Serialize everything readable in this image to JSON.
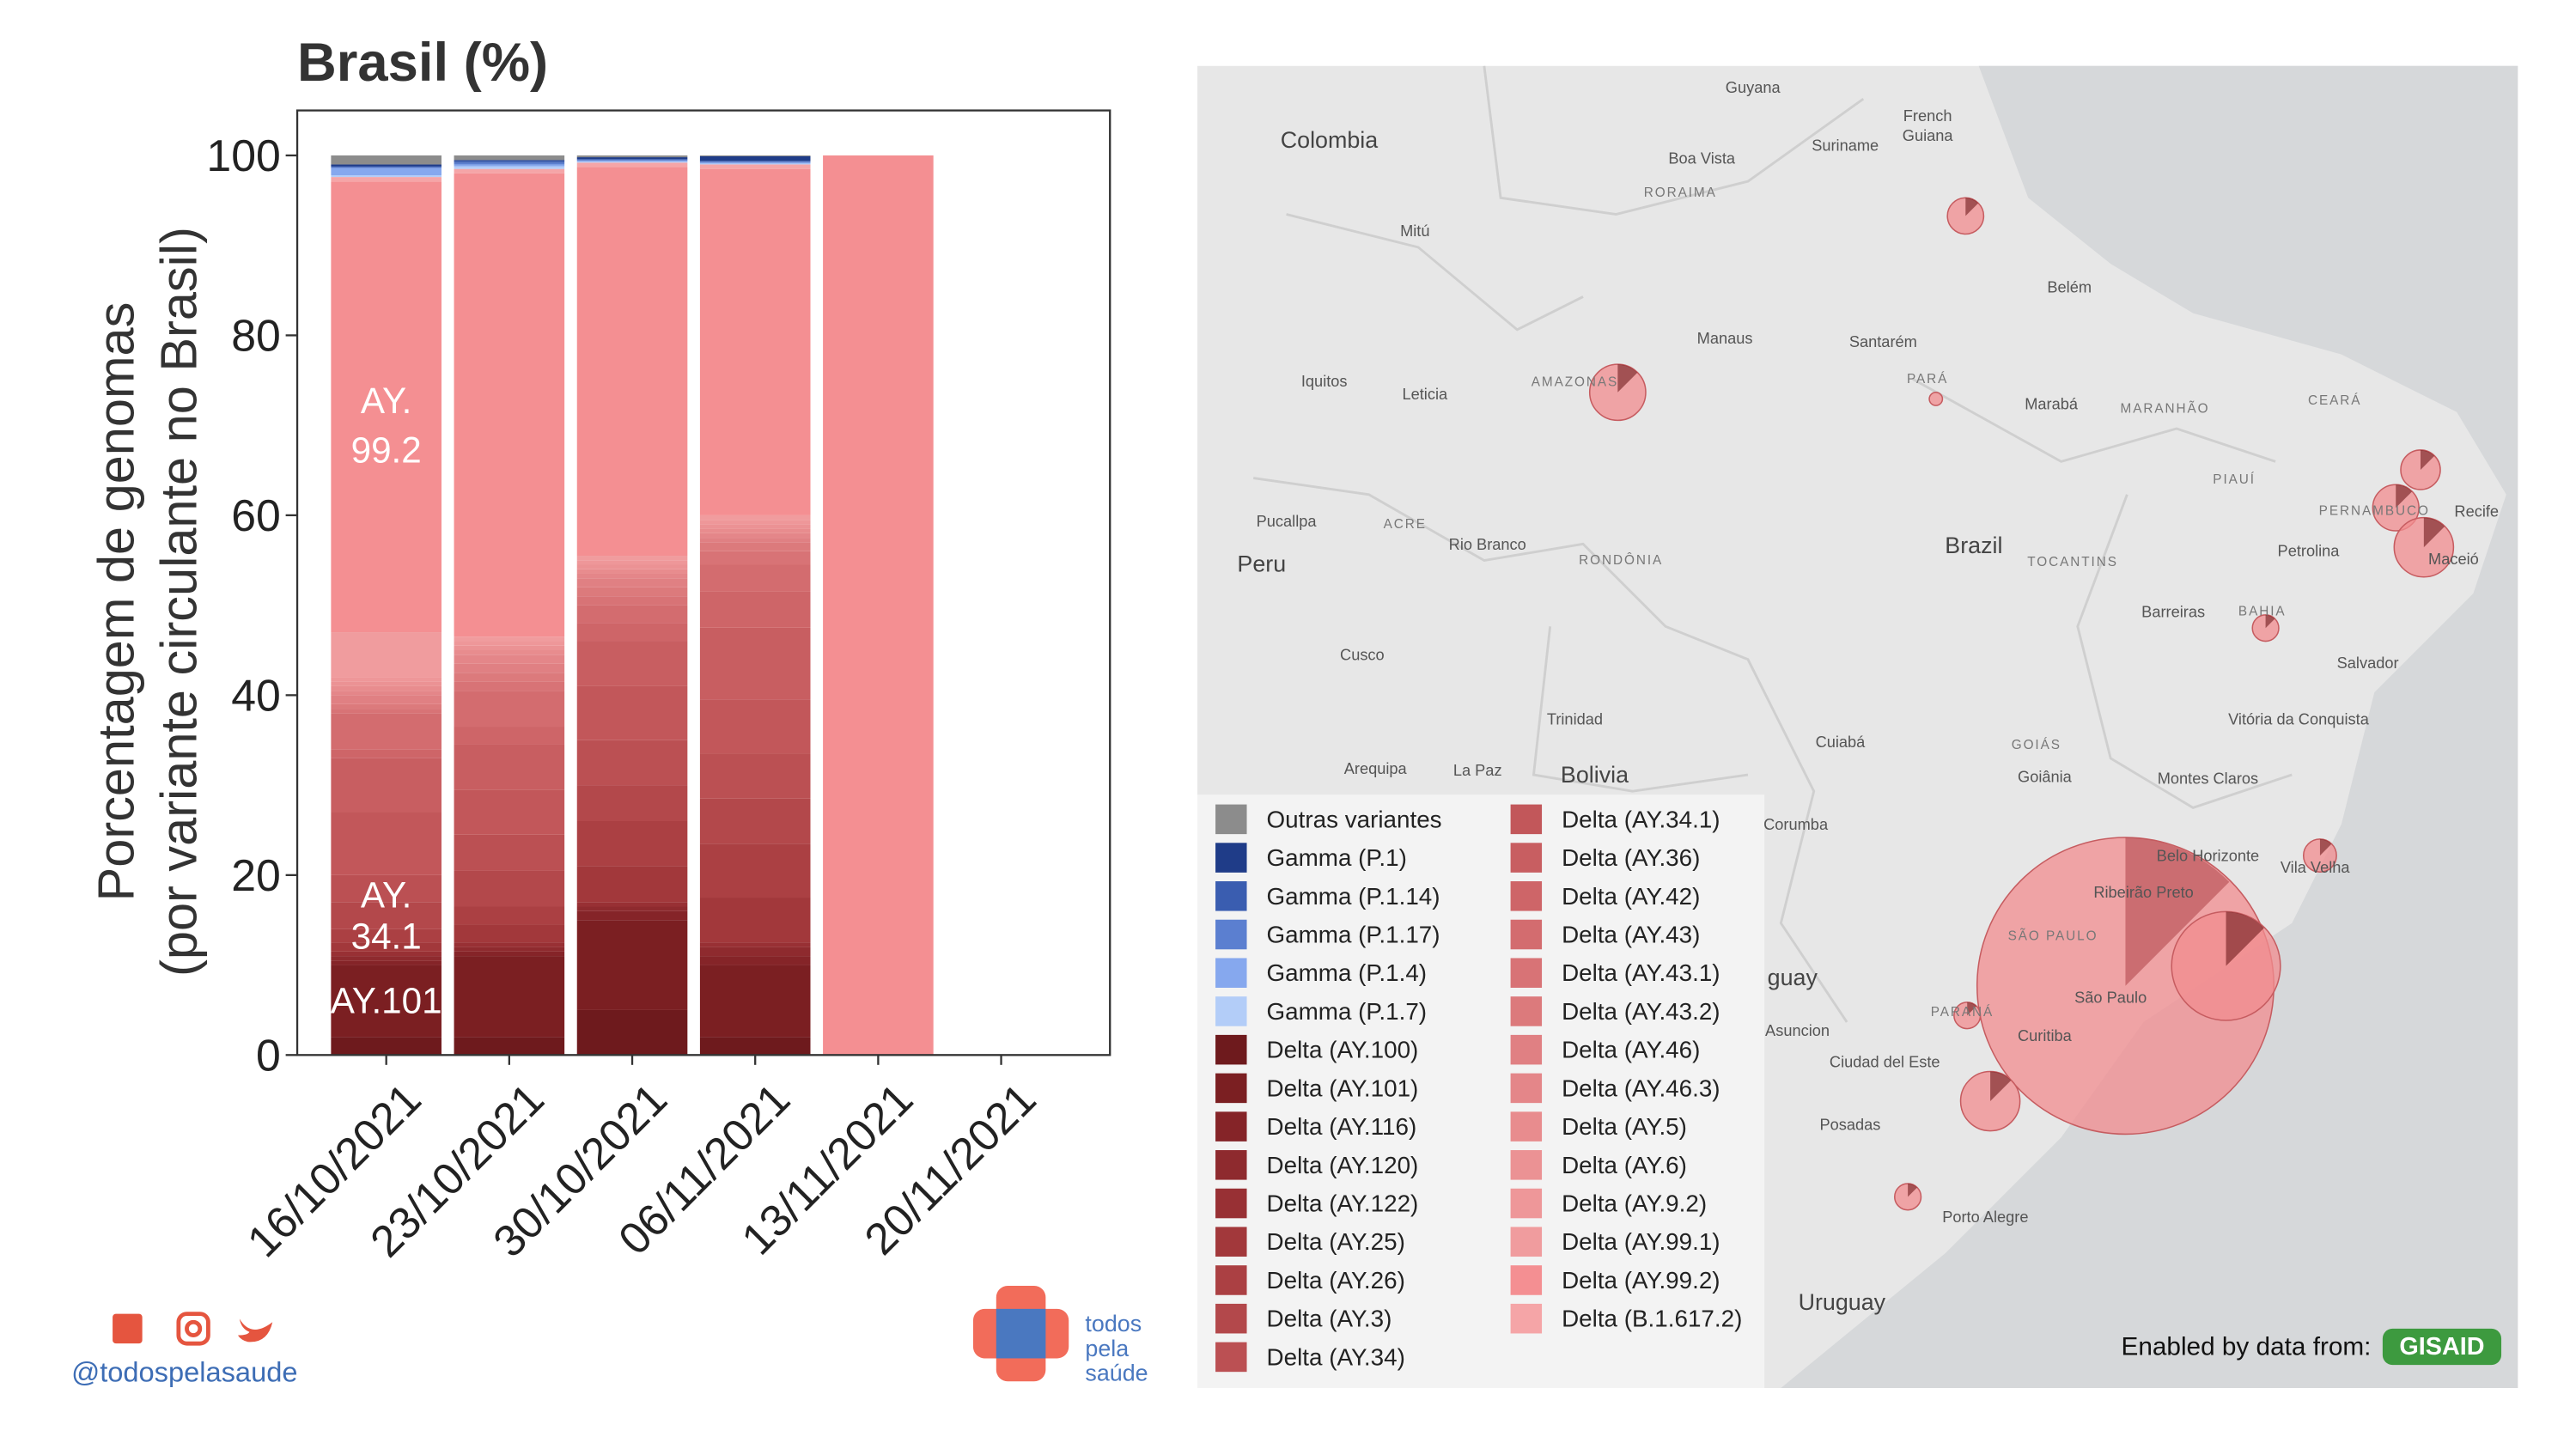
{
  "chart_data": {
    "type": "bar",
    "stacked": true,
    "title": "Brasil (%)",
    "ylabel": [
      "Porcentagem de genomas",
      "(por variante circulante no Brasil)"
    ],
    "categories": [
      "16/10/2021",
      "23/10/2021",
      "30/10/2021",
      "06/11/2021",
      "13/11/2021",
      "20/11/2021"
    ],
    "ylim": [
      0,
      105
    ],
    "yticks": [
      0,
      20,
      40,
      60,
      80,
      100
    ],
    "series": [
      {
        "name": "Outras variantes",
        "color": "#8c8c8c",
        "values": [
          1,
          0.5,
          0.2,
          0.1,
          0,
          null
        ]
      },
      {
        "name": "Gamma (P.1)",
        "color": "#1f3c88",
        "values": [
          0.2,
          0.1,
          0.2,
          0.5,
          0,
          null
        ]
      },
      {
        "name": "Gamma (P.1.14)",
        "color": "#3a5db0",
        "values": [
          0.1,
          0.2,
          0.1,
          0.1,
          0,
          null
        ]
      },
      {
        "name": "Gamma (P.1.17)",
        "color": "#5b7fd0",
        "values": [
          0.1,
          0.2,
          0.1,
          0.1,
          0,
          null
        ]
      },
      {
        "name": "Gamma (P.1.4)",
        "color": "#86a8ee",
        "values": [
          0.8,
          0.2,
          0.1,
          0.1,
          0,
          null
        ]
      },
      {
        "name": "Gamma (P.1.7)",
        "color": "#b3cdf8",
        "values": [
          0.2,
          0.3,
          0.1,
          0.1,
          0,
          null
        ]
      },
      {
        "name": "Delta (AY.100)",
        "color": "#6e1a1d",
        "values": [
          2,
          2,
          5,
          2,
          0,
          null
        ]
      },
      {
        "name": "Delta (AY.101)",
        "color": "#7b1f22",
        "values": [
          8,
          9,
          10,
          8,
          0,
          null
        ]
      },
      {
        "name": "Delta (AY.116)",
        "color": "#852428",
        "values": [
          0.5,
          0.5,
          1,
          1,
          0,
          null
        ]
      },
      {
        "name": "Delta (AY.120)",
        "color": "#8e2a2e",
        "values": [
          0.5,
          0.5,
          0.5,
          1,
          0,
          null
        ]
      },
      {
        "name": "Delta (AY.122)",
        "color": "#983034",
        "values": [
          0.5,
          0.5,
          0.5,
          0.5,
          0,
          null
        ]
      },
      {
        "name": "Delta (AY.25)",
        "color": "#a2383b",
        "values": [
          1,
          2,
          4,
          5,
          0,
          null
        ]
      },
      {
        "name": "Delta (AY.26)",
        "color": "#ab4043",
        "values": [
          1.5,
          2,
          5,
          6,
          0,
          null
        ]
      },
      {
        "name": "Delta (AY.3)",
        "color": "#b3484b",
        "values": [
          3,
          4,
          4,
          5,
          0,
          null
        ]
      },
      {
        "name": "Delta (AY.34)",
        "color": "#bb5053",
        "values": [
          3,
          4,
          5,
          5,
          0,
          null
        ]
      },
      {
        "name": "Delta (AY.34.1)",
        "color": "#c2575a",
        "values": [
          7,
          5,
          6,
          6,
          0,
          null
        ]
      },
      {
        "name": "Delta (AY.36)",
        "color": "#c85e61",
        "values": [
          6,
          5,
          5,
          8,
          0,
          null
        ]
      },
      {
        "name": "Delta (AY.42)",
        "color": "#ce6568",
        "values": [
          1,
          2,
          2,
          4,
          0,
          null
        ]
      },
      {
        "name": "Delta (AY.43)",
        "color": "#d36c6f",
        "values": [
          4,
          4,
          2,
          3,
          0,
          null
        ]
      },
      {
        "name": "Delta (AY.43.1)",
        "color": "#d87376",
        "values": [
          0.5,
          1,
          1,
          1.5,
          0,
          null
        ]
      },
      {
        "name": "Delta (AY.43.2)",
        "color": "#dc7a7c",
        "values": [
          0.5,
          1,
          1,
          1,
          0,
          null
        ]
      },
      {
        "name": "Delta (AY.46)",
        "color": "#e08083",
        "values": [
          1,
          1,
          1,
          0.5,
          0,
          null
        ]
      },
      {
        "name": "Delta (AY.46.3)",
        "color": "#e48689",
        "values": [
          0.5,
          1,
          0.5,
          0.5,
          0,
          null
        ]
      },
      {
        "name": "Delta (AY.5)",
        "color": "#e88c8e",
        "values": [
          0.5,
          0.5,
          0.5,
          0.5,
          0,
          null
        ]
      },
      {
        "name": "Delta (AY.6)",
        "color": "#eb9294",
        "values": [
          0.5,
          0.5,
          0.5,
          0.5,
          0,
          null
        ]
      },
      {
        "name": "Delta (AY.9.2)",
        "color": "#ee9799",
        "values": [
          0.5,
          0.5,
          0.5,
          0.5,
          0,
          null
        ]
      },
      {
        "name": "Delta (AY.99.1)",
        "color": "#f09c9e",
        "values": [
          5,
          0.5,
          0.5,
          0.5,
          0,
          null
        ]
      },
      {
        "name": "Delta (AY.99.2)",
        "color": "#f48f92",
        "values": [
          50.1,
          51.5,
          43.2,
          38.5,
          100,
          null
        ]
      },
      {
        "name": "Delta (B.1.617.2)",
        "color": "#f5a5a7",
        "values": [
          0.5,
          0.5,
          0.5,
          0.5,
          0,
          null
        ]
      }
    ],
    "annotations": [
      {
        "lines": [
          "AY.",
          "99.2"
        ]
      },
      {
        "lines": [
          "AY.",
          "34.1"
        ]
      },
      {
        "lines": [
          "AY.101"
        ]
      }
    ]
  },
  "map": {
    "labels": [
      "Colombia",
      "Guyana",
      "Suriname",
      "French",
      "Guiana",
      "Boa Vista",
      "RORAIMA",
      "Mitú",
      "Belém",
      "Manaus",
      "Santarém",
      "Iquitos",
      "Leticia",
      "AMAZONAS",
      "PARÁ",
      "Marabá",
      "MARANHÃO",
      "CEARÁ",
      "PIAUÍ",
      "Pucallpa",
      "ACRE",
      "Rio Branco",
      "RONDÔNIA",
      "Brazil",
      "TOCANTINS",
      "PERNAMBUCO",
      "Recife",
      "Petrolina",
      "Maceió",
      "Peru",
      "Barreiras",
      "BAHIA",
      "Cusco",
      "Salvador",
      "Trinidad",
      "Vitória da Conquista",
      "Cuiabá",
      "GOIÁS",
      "Goiânia",
      "Arequipa",
      "La Paz",
      "Bolivia",
      "Montes Claros",
      "Corumba",
      "Belo Horizonte",
      "Vila Velha",
      "Ribeirão Preto",
      "SÃO PAULO",
      "guay",
      "São Paulo",
      "PARANÁ",
      "Curitiba",
      "Asuncion",
      "Ciudad del Este",
      "Posadas",
      "Porto Alegre",
      "Uruguay"
    ],
    "credit": "Enabled by data from:",
    "credit_logo": "GISAID"
  },
  "footer": {
    "handle": "@todospelasaude",
    "logo": [
      "todos",
      "pela",
      "saúde"
    ]
  }
}
